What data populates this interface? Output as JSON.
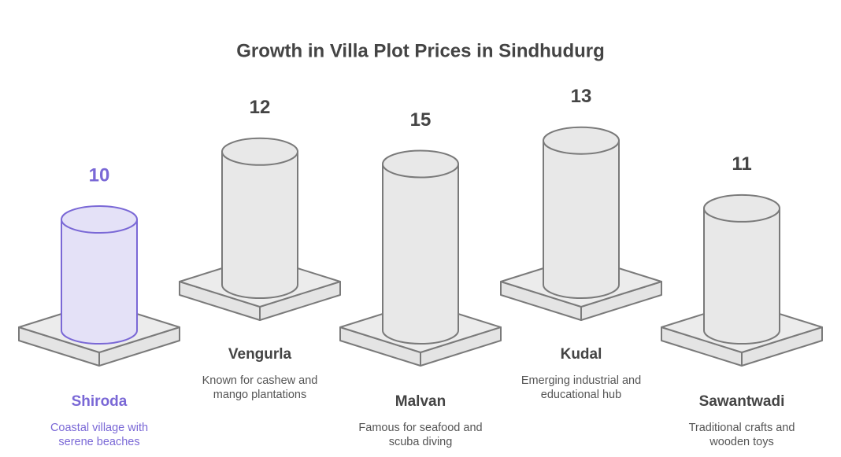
{
  "chart_data": {
    "type": "bar",
    "title": "Growth in Villa Plot Prices in Sindhudurg",
    "categories": [
      "Shiroda",
      "Vengurla",
      "Malvan",
      "Kudal",
      "Sawantwadi"
    ],
    "values": [
      10,
      12,
      15,
      13,
      11
    ],
    "descriptions": [
      [
        "Coastal village with",
        "serene beaches"
      ],
      [
        "Known for cashew and",
        "mango plantations"
      ],
      [
        "Famous for seafood and",
        "scuba diving"
      ],
      [
        "Emerging industrial and",
        "educational hub"
      ],
      [
        "Traditional crafts and",
        "wooden toys"
      ]
    ],
    "colors": [
      "#7a68d6",
      "#7a7a7a",
      "#7a7a7a",
      "#7a7a7a",
      "#7a7a7a"
    ]
  }
}
